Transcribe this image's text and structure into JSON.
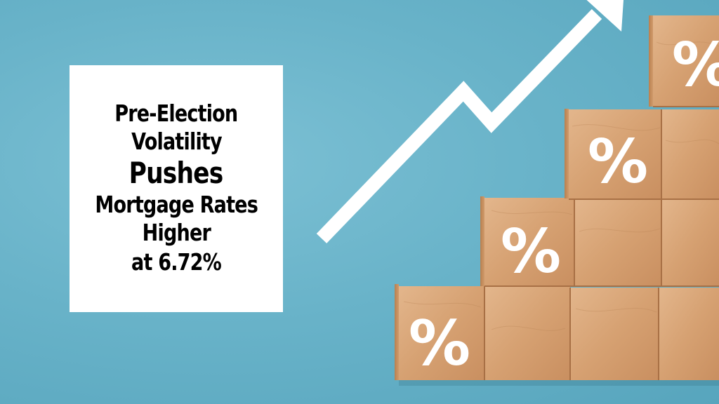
{
  "headline": {
    "line1": "Pre-Election",
    "line2": "Volatility",
    "line3": "Pushes",
    "line4": "Mortgage Rates",
    "line5": "Higher",
    "line6": "at 6.72%"
  },
  "blocks": {
    "symbol": "%"
  },
  "colors": {
    "background": "#69b3c9",
    "card": "#ffffff",
    "wood": "#d9a679",
    "arrow": "#ffffff"
  },
  "icons": [
    "upward-trend-arrow-icon",
    "percent-block-icon"
  ]
}
